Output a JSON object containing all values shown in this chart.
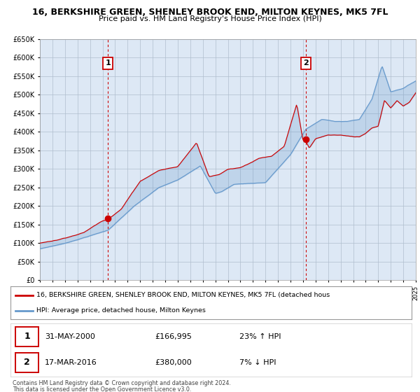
{
  "title_line1": "16, BERKSHIRE GREEN, SHENLEY BROOK END, MILTON KEYNES, MK5 7FL",
  "title_line2": "Price paid vs. HM Land Registry's House Price Index (HPI)",
  "ylim": [
    0,
    650000
  ],
  "yticks": [
    0,
    50000,
    100000,
    150000,
    200000,
    250000,
    300000,
    350000,
    400000,
    450000,
    500000,
    550000,
    600000,
    650000
  ],
  "sale1_date_label": "31-MAY-2000",
  "sale1_price_label": "£166,995",
  "sale1_pct_label": "23% ↑ HPI",
  "sale1_year": 2000.42,
  "sale1_price": 166995,
  "sale2_date_label": "17-MAR-2016",
  "sale2_price_label": "£380,000",
  "sale2_pct_label": "7% ↓ HPI",
  "sale2_year": 2016.21,
  "sale2_price": 380000,
  "legend_line1": "16, BERKSHIRE GREEN, SHENLEY BROOK END, MILTON KEYNES, MK5 7FL (detached hous",
  "legend_line2": "HPI: Average price, detached house, Milton Keynes",
  "footer_line1": "Contains HM Land Registry data © Crown copyright and database right 2024.",
  "footer_line2": "This data is licensed under the Open Government Licence v3.0.",
  "red_color": "#cc0000",
  "blue_color": "#6699cc",
  "plot_bg": "#dde8f5",
  "grid_color": "#b0bece"
}
